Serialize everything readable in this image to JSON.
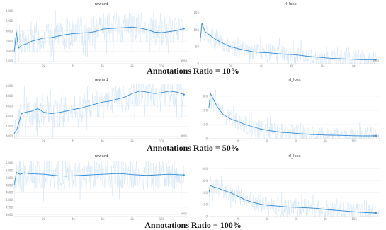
{
  "figure": {
    "captions": [
      "Annotations Ratio = 10%",
      "Annotations Ratio = 50%",
      "Annotations Ratio = 100%"
    ],
    "colors": {
      "line": "#2f8ad6",
      "raw": "#bcd9f2",
      "grid": "#ececec",
      "text": "#8a8a8a",
      "caption": "#111111"
    }
  },
  "chart_data": [
    {
      "type": "line",
      "title": "reward",
      "xlabel": "Step",
      "xticks": [
        "2k",
        "4k",
        "6k",
        "8k",
        "10k"
      ],
      "yticks": [
        "2400",
        "2600",
        "2800",
        "3000",
        "3200",
        "3400"
      ],
      "xlim": [
        0,
        11800
      ],
      "ylim": [
        2350,
        3450
      ],
      "grid": true,
      "series": [
        {
          "x": [
            0,
            150,
            300,
            500,
            800,
            1200,
            1600,
            2000,
            2500,
            3000,
            3500,
            4000,
            4500,
            5000,
            5500,
            6000,
            6500,
            7000,
            7500,
            8000,
            8500,
            9000,
            9500,
            10000,
            10500,
            11000,
            11500
          ],
          "y": [
            2580,
            2980,
            2660,
            2720,
            2740,
            2800,
            2830,
            2860,
            2870,
            2900,
            2930,
            2950,
            2960,
            2970,
            2990,
            3040,
            3050,
            3060,
            3070,
            3080,
            3060,
            3030,
            2980,
            2970,
            2990,
            3010,
            3050
          ]
        }
      ]
    },
    {
      "type": "line",
      "title": "rl_loss",
      "xlabel": "Step",
      "xticks": [
        "2k",
        "4k",
        "6k",
        "8k",
        "10k"
      ],
      "yticks": [
        "0",
        "50",
        "100",
        "150"
      ],
      "xlim": [
        0,
        11800
      ],
      "ylim": [
        0,
        155
      ],
      "grid": true,
      "series": [
        {
          "x": [
            0,
            100,
            300,
            600,
            1000,
            1500,
            2000,
            2500,
            3000,
            3500,
            4000,
            4500,
            5000,
            5500,
            6000,
            6500,
            7000,
            7500,
            8000,
            8500,
            9000,
            9500,
            10000,
            10500,
            11000,
            11500
          ],
          "y": [
            75,
            120,
            95,
            85,
            72,
            60,
            50,
            44,
            39,
            35,
            33,
            32,
            30,
            28,
            27,
            25,
            22,
            20,
            18,
            16,
            15,
            14,
            13,
            12,
            12,
            12
          ]
        }
      ]
    },
    {
      "type": "line",
      "title": "reward",
      "xlabel": "Step",
      "xticks": [
        "2k",
        "4k",
        "6k",
        "8k",
        "10k"
      ],
      "yticks": [
        "4000",
        "4200",
        "4400",
        "4600",
        "4800",
        "5000"
      ],
      "xlim": [
        0,
        11800
      ],
      "ylim": [
        3950,
        5050
      ],
      "grid": true,
      "series": [
        {
          "x": [
            0,
            200,
            500,
            800,
            1200,
            1600,
            2000,
            2500,
            3000,
            3500,
            4000,
            4500,
            5000,
            5500,
            6000,
            6500,
            7000,
            7500,
            8000,
            8500,
            9000,
            9500,
            10000,
            10500,
            11000,
            11500
          ],
          "y": [
            4050,
            4150,
            4450,
            4480,
            4500,
            4550,
            4480,
            4450,
            4470,
            4500,
            4530,
            4560,
            4600,
            4640,
            4680,
            4700,
            4740,
            4780,
            4850,
            4900,
            4880,
            4850,
            4870,
            4900,
            4880,
            4830
          ]
        }
      ]
    },
    {
      "type": "line",
      "title": "rl_loss",
      "xlabel": "Step",
      "xticks": [
        "2k",
        "4k",
        "6k",
        "8k",
        "10k"
      ],
      "yticks": [
        "0",
        "100",
        "200",
        "300"
      ],
      "xlim": [
        0,
        11800
      ],
      "ylim": [
        0,
        360
      ],
      "grid": true,
      "series": [
        {
          "x": [
            0,
            100,
            300,
            600,
            1000,
            1500,
            2000,
            2500,
            3000,
            3500,
            4000,
            4500,
            5000,
            5500,
            6000,
            6500,
            7000,
            7500,
            8000,
            8500,
            9000,
            9500,
            10000,
            10500,
            11000,
            11500
          ],
          "y": [
            220,
            320,
            280,
            220,
            170,
            140,
            120,
            100,
            85,
            70,
            60,
            52,
            45,
            42,
            38,
            34,
            30,
            28,
            26,
            25,
            24,
            22,
            21,
            20,
            20,
            20
          ]
        }
      ]
    },
    {
      "type": "line",
      "title": "reward",
      "xlabel": "Step",
      "xticks": [
        "2k",
        "4k",
        "6k",
        "8k",
        "10k"
      ],
      "yticks": [
        "4000",
        "4200",
        "4400",
        "4600",
        "4800",
        "5000",
        "5200",
        "5400"
      ],
      "xlim": [
        0,
        11800
      ],
      "ylim": [
        3950,
        5450
      ],
      "grid": true,
      "series": [
        {
          "x": [
            0,
            150,
            400,
            700,
            1000,
            1500,
            2000,
            2500,
            3000,
            3500,
            4000,
            4500,
            5000,
            5500,
            6000,
            6500,
            7000,
            7500,
            8000,
            8500,
            9000,
            9500,
            10000,
            10500,
            11000,
            11500
          ],
          "y": [
            4800,
            5150,
            5100,
            5140,
            5120,
            5110,
            5100,
            5080,
            5060,
            5050,
            5060,
            5070,
            5080,
            5090,
            5100,
            5110,
            5120,
            5110,
            5090,
            5080,
            5070,
            5080,
            5090,
            5100,
            5090,
            5080
          ]
        }
      ]
    },
    {
      "type": "line",
      "title": "rl_loss",
      "xlabel": "Step",
      "xticks": [
        "2k",
        "4k",
        "6k",
        "8k",
        "10k"
      ],
      "yticks": [
        "0",
        "100",
        "200",
        "300",
        "400"
      ],
      "xlim": [
        0,
        11800
      ],
      "ylim": [
        0,
        440
      ],
      "grid": true,
      "series": [
        {
          "x": [
            0,
            100,
            300,
            600,
            1000,
            1500,
            2000,
            2500,
            3000,
            3500,
            4000,
            4500,
            5000,
            5500,
            6000,
            6500,
            7000,
            7500,
            8000,
            8500,
            9000,
            9500,
            10000,
            10500,
            11000,
            11500
          ],
          "y": [
            200,
            260,
            250,
            240,
            220,
            200,
            170,
            140,
            120,
            105,
            95,
            90,
            85,
            80,
            78,
            75,
            72,
            68,
            60,
            55,
            50,
            45,
            40,
            35,
            32,
            30
          ]
        }
      ]
    }
  ]
}
